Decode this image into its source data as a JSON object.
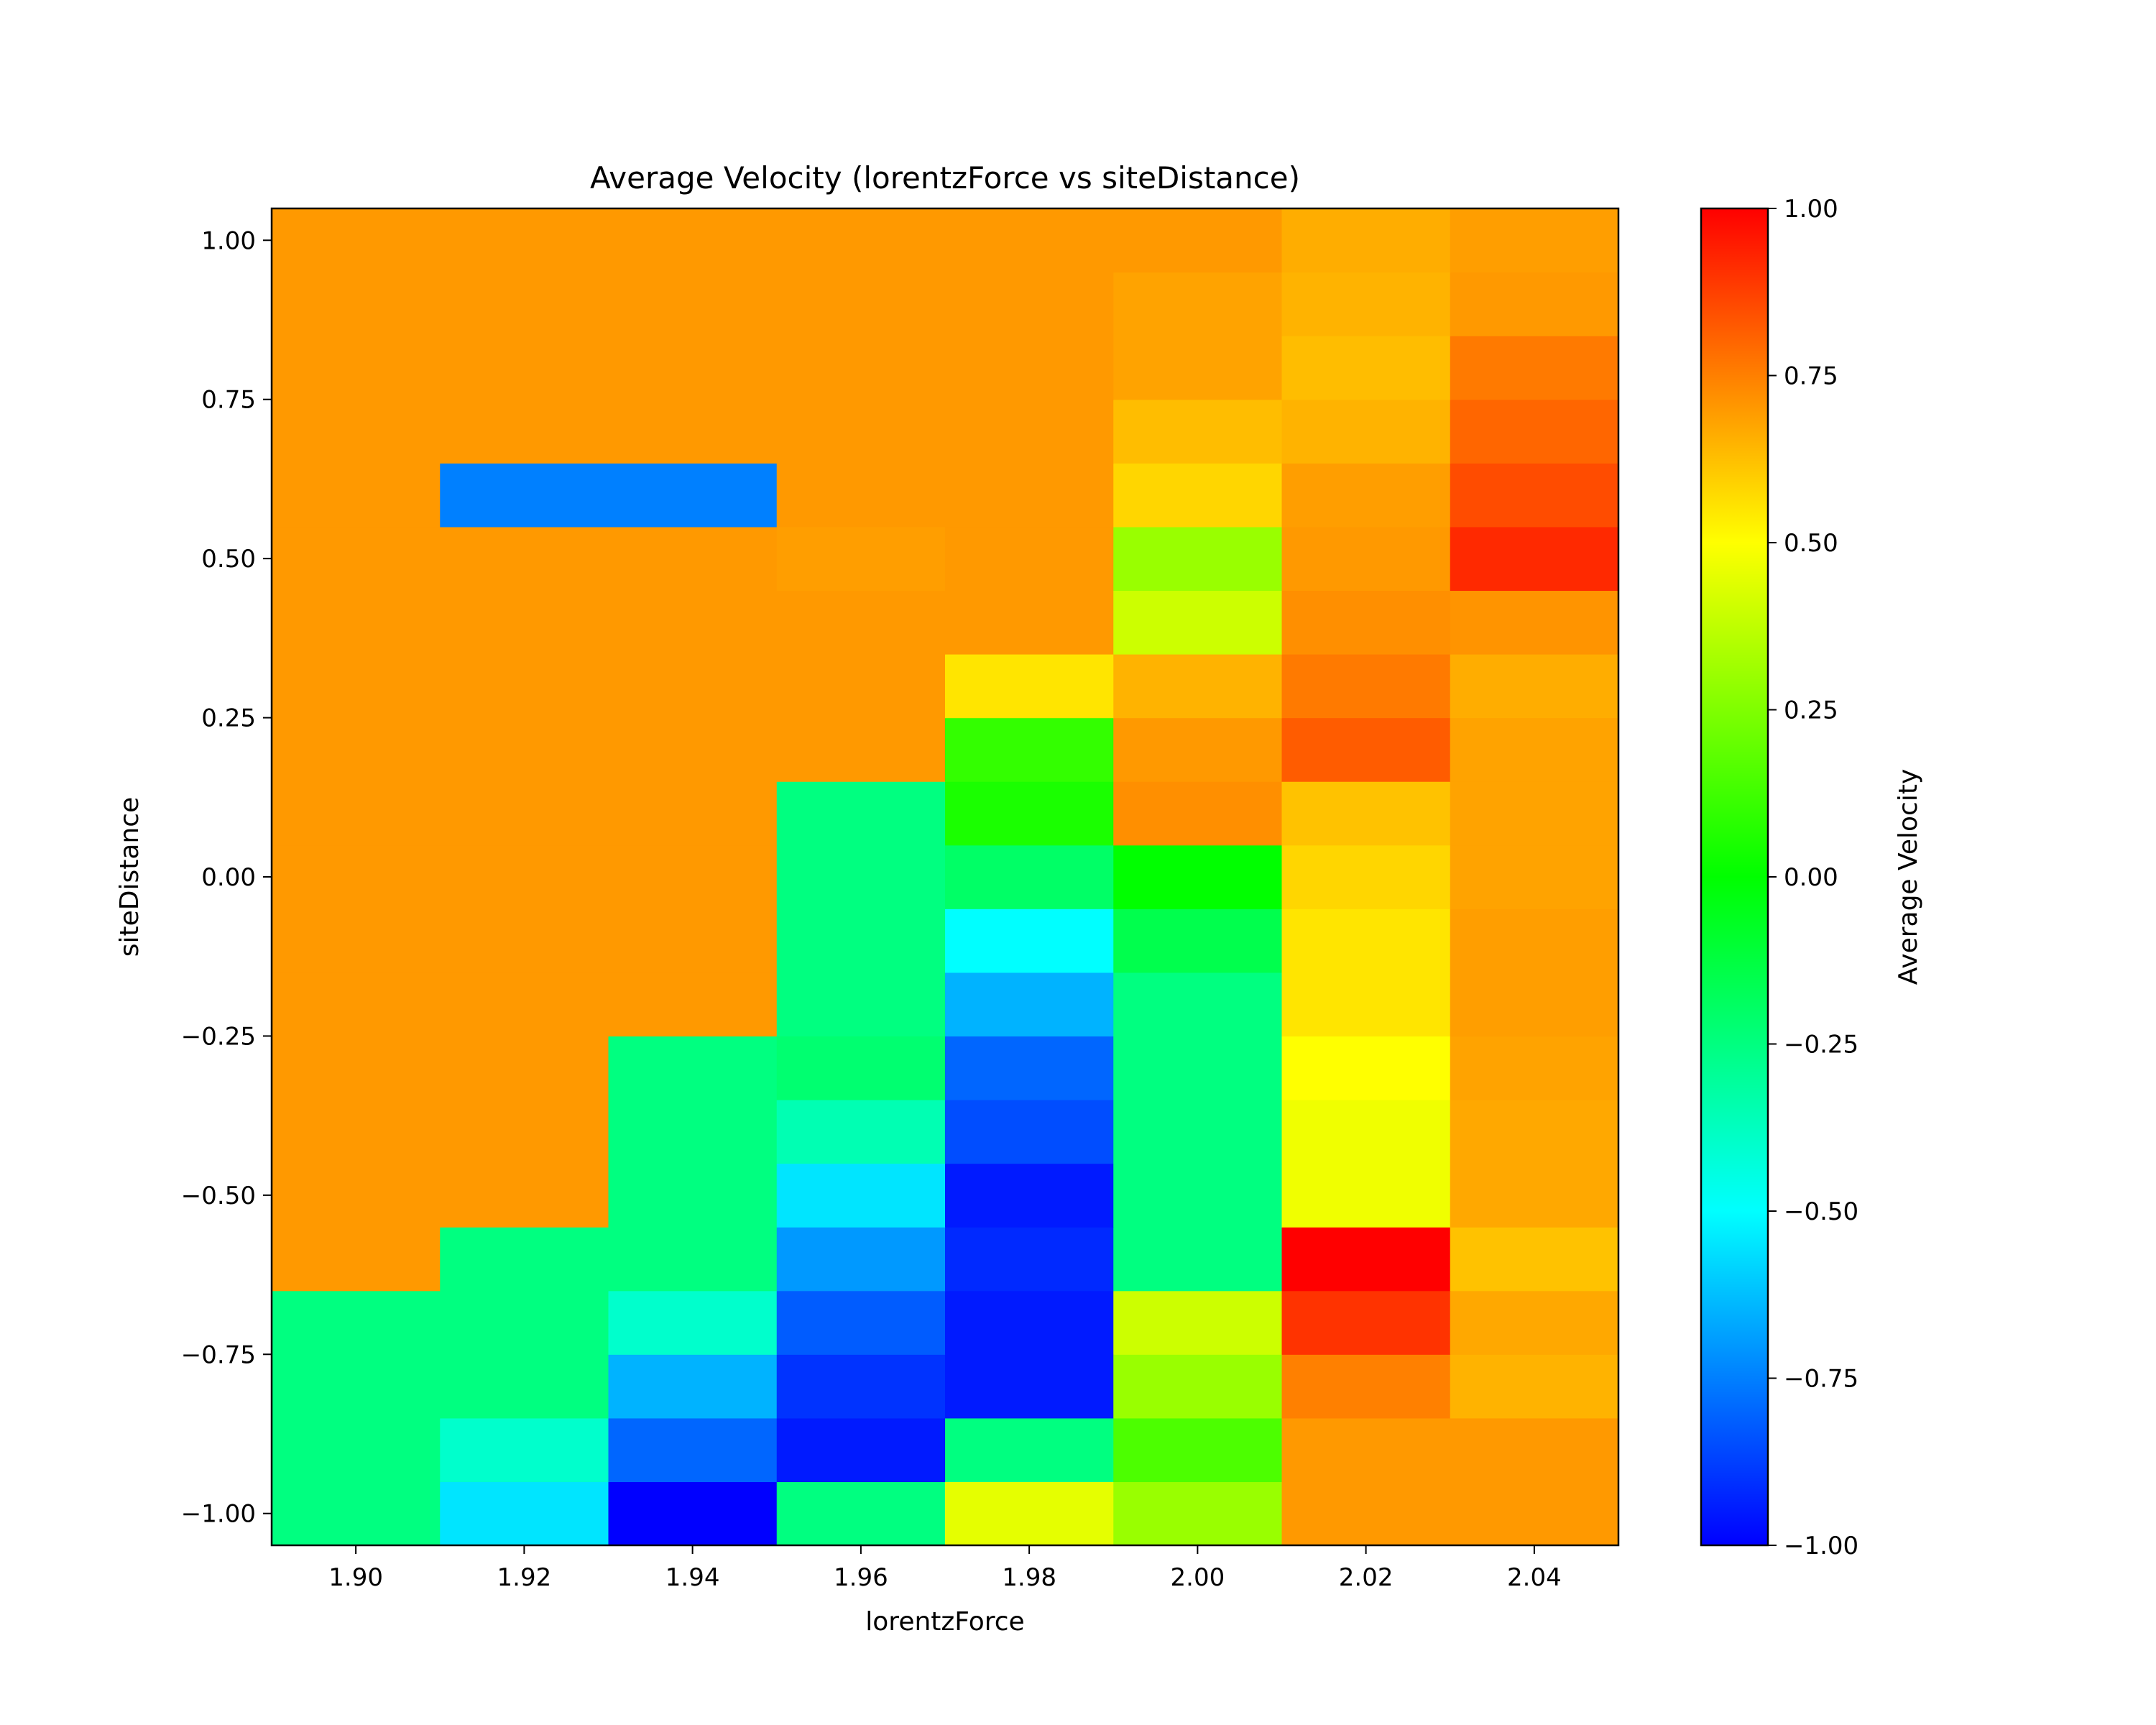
{
  "chart_data": {
    "type": "heatmap",
    "title": "Average Velocity (lorentzForce vs siteDistance)",
    "xlabel": "lorentzForce",
    "ylabel": "siteDistance",
    "x": [
      1.9,
      1.92,
      1.94,
      1.96,
      1.98,
      2.0,
      2.02,
      2.04
    ],
    "y": [
      -1.0,
      -0.9,
      -0.8,
      -0.7,
      -0.6,
      -0.5,
      -0.4,
      -0.3,
      -0.2,
      -0.1,
      0.0,
      0.1,
      0.2,
      0.3,
      0.4,
      0.5,
      0.6,
      0.7,
      0.8,
      0.9,
      1.0
    ],
    "xlim": [
      1.89,
      2.05
    ],
    "ylim": [
      -1.05,
      1.05
    ],
    "xticks": [
      "1.90",
      "1.92",
      "1.94",
      "1.96",
      "1.98",
      "2.00",
      "2.02",
      "2.04"
    ],
    "yticks": [
      "1.00",
      "0.75",
      "0.50",
      "0.25",
      "0.00",
      "−0.25",
      "−0.50",
      "−0.75",
      "−1.00"
    ],
    "ytick_values": [
      1.0,
      0.75,
      0.5,
      0.25,
      0.0,
      -0.25,
      -0.5,
      -0.75,
      -1.0
    ],
    "values": [
      [
        -0.25,
        -0.55,
        -1.0,
        -0.25,
        0.45,
        0.3,
        0.7,
        0.7
      ],
      [
        -0.25,
        -0.4,
        -0.8,
        -0.95,
        -0.25,
        0.15,
        0.7,
        0.7
      ],
      [
        -0.25,
        -0.25,
        -0.65,
        -0.9,
        -0.95,
        0.3,
        0.75,
        0.65
      ],
      [
        -0.25,
        -0.25,
        -0.4,
        -0.82,
        -0.95,
        0.4,
        0.9,
        0.67
      ],
      [
        0.7,
        -0.25,
        -0.25,
        -0.7,
        -0.92,
        -0.25,
        1.0,
        0.62
      ],
      [
        0.7,
        0.7,
        -0.25,
        -0.55,
        -0.95,
        -0.25,
        0.47,
        0.67
      ],
      [
        0.7,
        0.7,
        -0.25,
        -0.35,
        -0.85,
        -0.25,
        0.47,
        0.67
      ],
      [
        0.7,
        0.7,
        -0.25,
        -0.22,
        -0.8,
        -0.25,
        0.5,
        0.68
      ],
      [
        0.7,
        0.7,
        0.7,
        -0.25,
        -0.65,
        -0.25,
        0.55,
        0.69
      ],
      [
        0.7,
        0.7,
        0.7,
        -0.25,
        -0.5,
        -0.15,
        0.55,
        0.69
      ],
      [
        0.7,
        0.7,
        0.7,
        -0.25,
        -0.2,
        0.0,
        0.58,
        0.68
      ],
      [
        0.7,
        0.7,
        0.7,
        -0.25,
        0.05,
        0.72,
        0.62,
        0.68
      ],
      [
        0.7,
        0.7,
        0.7,
        0.7,
        0.1,
        0.7,
        0.82,
        0.68
      ],
      [
        0.7,
        0.7,
        0.7,
        0.7,
        0.55,
        0.65,
        0.76,
        0.66
      ],
      [
        0.7,
        0.7,
        0.7,
        0.7,
        0.7,
        0.4,
        0.72,
        0.71
      ],
      [
        0.7,
        0.7,
        0.7,
        0.69,
        0.7,
        0.3,
        0.7,
        0.92
      ],
      [
        0.7,
        -0.75,
        -0.75,
        0.7,
        0.7,
        0.58,
        0.69,
        0.85
      ],
      [
        0.7,
        0.7,
        0.7,
        0.7,
        0.7,
        0.63,
        0.65,
        0.8
      ],
      [
        0.7,
        0.7,
        0.7,
        0.7,
        0.7,
        0.68,
        0.63,
        0.76
      ],
      [
        0.7,
        0.7,
        0.7,
        0.7,
        0.7,
        0.68,
        0.65,
        0.7
      ],
      [
        0.7,
        0.7,
        0.7,
        0.7,
        0.7,
        0.7,
        0.66,
        0.69
      ]
    ],
    "colormap": "hsv-segment: blue(-1) → cyan(-0.5) → green(0) → yellow(0.5) → red(1)",
    "colorbar": {
      "label": "Average Velocity",
      "range": [
        -1.0,
        1.0
      ],
      "ticks": [
        "1.00",
        "0.75",
        "0.50",
        "0.25",
        "0.00",
        "−0.25",
        "−0.50",
        "−0.75",
        "−1.00"
      ],
      "tick_values": [
        1.0,
        0.75,
        0.5,
        0.25,
        0.0,
        -0.25,
        -0.5,
        -0.75,
        -1.0
      ]
    },
    "grid": false,
    "legend": "colorbar-right"
  }
}
